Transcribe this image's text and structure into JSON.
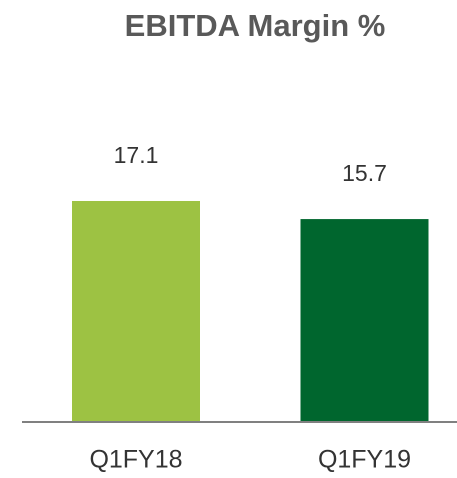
{
  "chart_data": {
    "type": "bar",
    "title": "EBITDA Margin %",
    "categories": [
      "Q1FY18",
      "Q1FY19"
    ],
    "values": [
      17.1,
      15.7
    ],
    "colors": [
      "#9dc243",
      "#00662e"
    ],
    "ylim": [
      0,
      20
    ]
  }
}
